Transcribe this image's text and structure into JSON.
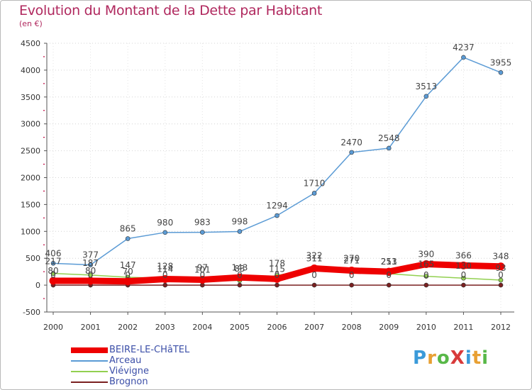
{
  "title": "Evolution du Montant de la Dette par Habitant",
  "subtitle": "(en €)",
  "logo": {
    "text": "ProXiti",
    "colors": [
      "#3a9ad9",
      "#e8a033",
      "#58b848",
      "#d83a3a",
      "#3a9ad9",
      "#e8a033",
      "#58b848"
    ]
  },
  "chart_data": {
    "type": "line",
    "title": "Evolution du Montant de la Dette par Habitant",
    "unit_label": "(en €)",
    "ylim": [
      -500,
      4500
    ],
    "y_ticks": [
      -500,
      0,
      500,
      1000,
      1500,
      2000,
      2500,
      3000,
      3500,
      4000,
      4500
    ],
    "x": [
      "2000",
      "2001",
      "2002",
      "2003",
      "2004",
      "2005",
      "2006",
      "2007",
      "2008",
      "2009",
      "2010",
      "2011",
      "2012"
    ],
    "legend_position": "bottom-left",
    "series": [
      {
        "name": "BEIRE-LE-CHâTEL",
        "color": "#ee0000",
        "width": 9,
        "values": [
          80,
          80,
          70,
          114,
          101,
          143,
          115,
          311,
          271,
          251,
          390,
          366,
          348
        ],
        "labels": [
          "80",
          "80",
          "70",
          "114",
          "101",
          "143",
          "115",
          "311",
          "271",
          "251",
          "390",
          "366",
          "348"
        ]
      },
      {
        "name": "Arceau",
        "color": "#5b9bd5",
        "width": 1.5,
        "values": [
          406,
          377,
          865,
          980,
          983,
          998,
          1294,
          1710,
          2470,
          2548,
          3513,
          4237,
          3955
        ],
        "labels": [
          "406",
          "377",
          "865",
          "980",
          "983",
          "998",
          "1294",
          "1710",
          "2470",
          "2548",
          "3513",
          "4237",
          "3955"
        ]
      },
      {
        "name": "Viévigne",
        "color": "#92d050",
        "width": 1.5,
        "values": [
          217,
          187,
          147,
          128,
          97,
          83,
          178,
          322,
          270,
          213,
          165,
          130,
          93
        ],
        "labels": [
          "217",
          "187",
          "147",
          "128",
          "97",
          "83",
          "178",
          "322",
          "270",
          "213",
          "165",
          "130",
          "93"
        ]
      },
      {
        "name": "Brognon",
        "color": "#7a2020",
        "width": 1.5,
        "values": [
          0,
          0,
          0,
          0,
          0,
          0,
          0,
          0,
          0,
          0,
          0,
          0,
          0
        ],
        "labels": [
          "0",
          "0",
          "0",
          "0",
          "0",
          "0",
          "0",
          "0",
          "0",
          "0",
          "0",
          "0",
          "0"
        ]
      }
    ]
  }
}
